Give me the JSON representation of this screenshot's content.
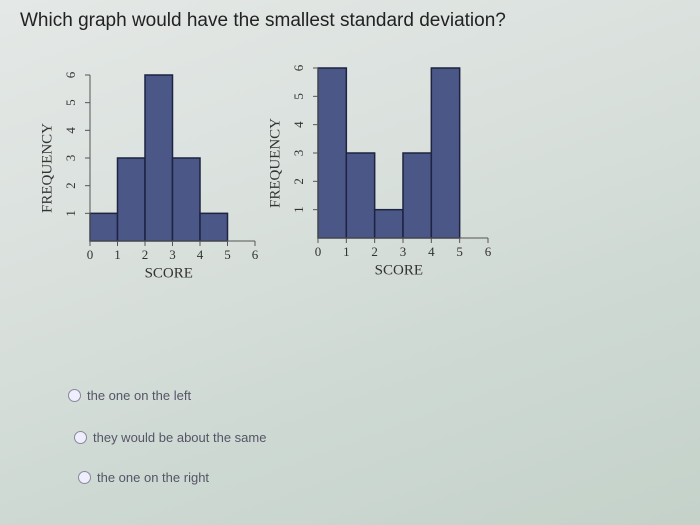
{
  "question": "Which graph would have the smallest standard deviation?",
  "chart_data": [
    {
      "type": "histogram",
      "bins": [
        0,
        1,
        2,
        3,
        4,
        5
      ],
      "values": [
        1,
        3,
        6,
        3,
        1
      ],
      "color": "#4b5887",
      "xlim": [
        0,
        6
      ],
      "xticks": [
        0,
        1,
        2,
        3,
        4,
        5,
        6
      ],
      "ylim": [
        0,
        6
      ],
      "yticks": [
        1,
        2,
        3,
        4,
        5,
        6
      ],
      "xlabel": "SCORE",
      "ylabel": "FREQUENCY"
    },
    {
      "type": "histogram",
      "bins": [
        0,
        1,
        2,
        3,
        4,
        5
      ],
      "values": [
        6,
        3,
        1,
        3,
        6
      ],
      "color": "#4b5887",
      "xlim": [
        0,
        6
      ],
      "xticks": [
        0,
        1,
        2,
        3,
        4,
        5,
        6
      ],
      "ylim": [
        0,
        6
      ],
      "yticks": [
        1,
        2,
        3,
        4,
        5,
        6
      ],
      "xlabel": "SCORE",
      "ylabel": "FREQUENCY"
    }
  ],
  "options": [
    "the one on the left",
    "they would be about the same",
    "the one on the right"
  ]
}
